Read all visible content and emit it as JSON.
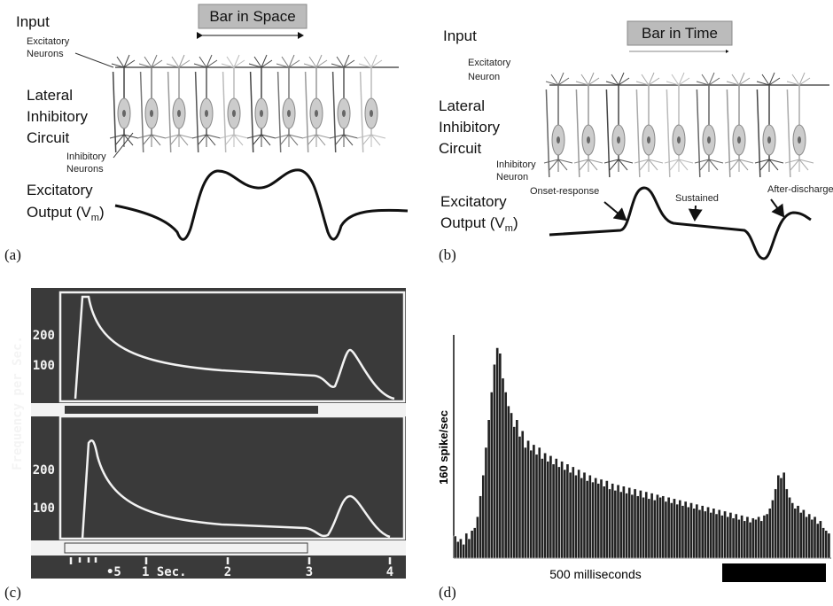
{
  "panels": {
    "a": {
      "label": "(a)",
      "input": "Input",
      "bar": "Bar in Space",
      "excitatory": [
        "Excitatory",
        "Neurons"
      ],
      "circuit": [
        "Lateral",
        "Inhibitory",
        "Circuit"
      ],
      "inhibitory": [
        "Inhibitory",
        "Neurons"
      ],
      "output": [
        "Excitatory",
        "Output (V",
        "m",
        ")"
      ]
    },
    "b": {
      "label": "(b)",
      "input": "Input",
      "bar": "Bar in Time",
      "excitatory": [
        "Excitatory",
        "Neuron"
      ],
      "circuit": [
        "Lateral",
        "Inhibitory",
        "Circuit"
      ],
      "inhibitory": [
        "Inhibitory",
        "Neuron"
      ],
      "output": [
        "Excitatory",
        "Output (V",
        "m",
        ")"
      ],
      "annotations": [
        "Onset-response",
        "Sustained",
        "After-discharge"
      ]
    },
    "c": {
      "label": "(c)",
      "y_label": "Frequency  per  Sec.",
      "top_ticks": [
        "200",
        "100"
      ],
      "bottom_ticks": [
        "200",
        "100"
      ],
      "x_ticks": [
        "•5",
        "1 Sec.",
        "2",
        "3",
        "4"
      ]
    },
    "d": {
      "label": "(d)",
      "y_label": "160 spike/sec",
      "x_label": "500 milliseconds",
      "values": [
        16,
        12,
        14,
        10,
        18,
        14,
        20,
        22,
        30,
        45,
        60,
        80,
        100,
        120,
        140,
        152,
        148,
        130,
        120,
        110,
        105,
        95,
        100,
        88,
        92,
        80,
        85,
        78,
        82,
        75,
        80,
        72,
        76,
        70,
        74,
        68,
        72,
        66,
        70,
        64,
        68,
        62,
        66,
        60,
        64,
        58,
        62,
        56,
        60,
        55,
        58,
        54,
        57,
        52,
        56,
        50,
        54,
        49,
        53,
        48,
        52,
        47,
        51,
        46,
        50,
        45,
        49,
        44,
        48,
        43,
        47,
        42,
        46,
        44,
        45,
        41,
        44,
        40,
        43,
        39,
        42,
        38,
        41,
        37,
        40,
        36,
        39,
        35,
        38,
        34,
        37,
        33,
        36,
        32,
        35,
        31,
        34,
        30,
        33,
        29,
        32,
        28,
        31,
        27,
        30,
        26,
        29,
        28,
        30,
        27,
        31,
        32,
        36,
        42,
        50,
        60,
        58,
        62,
        50,
        44,
        40,
        36,
        38,
        33,
        35,
        30,
        32,
        28,
        30,
        25,
        27,
        22,
        20,
        18
      ]
    }
  }
}
